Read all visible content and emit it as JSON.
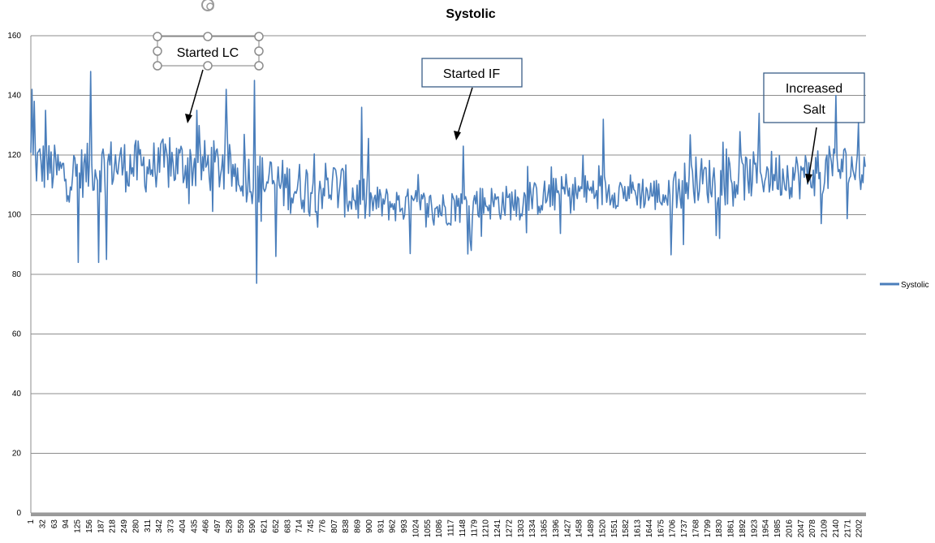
{
  "chart_data": {
    "type": "line",
    "title": "Systolic",
    "xlabel": "",
    "ylabel": "",
    "ylim": [
      0,
      160
    ],
    "yticks": [
      0,
      20,
      40,
      60,
      80,
      100,
      120,
      140,
      160
    ],
    "x_start": 1,
    "x_end": 2220,
    "xticks": [
      "1",
      "32",
      "63",
      "94",
      "125",
      "156",
      "187",
      "218",
      "249",
      "280",
      "311",
      "342",
      "373",
      "404",
      "435",
      "466",
      "497",
      "528",
      "559",
      "590",
      "621",
      "652",
      "683",
      "714",
      "745",
      "776",
      "807",
      "838",
      "869",
      "900",
      "931",
      "962",
      "993",
      "1024",
      "1055",
      "1086",
      "1117",
      "1148",
      "1179",
      "1210",
      "1241",
      "1272",
      "1303",
      "1334",
      "1365",
      "1396",
      "1427",
      "1458",
      "1489",
      "1520",
      "1551",
      "1582",
      "1613",
      "1644",
      "1675",
      "1706",
      "1737",
      "1768",
      "1799",
      "1830",
      "1861",
      "1892",
      "1923",
      "1954",
      "1985",
      "2016",
      "2047",
      "2078",
      "2109",
      "2140",
      "2171",
      "2202"
    ],
    "grid": true,
    "legend_position": "right",
    "series": [
      {
        "name": "Systolic",
        "color": "#4a7ebb",
        "baseline": [
          [
            1,
            118
          ],
          [
            100,
            113
          ],
          [
            200,
            117
          ],
          [
            300,
            116
          ],
          [
            400,
            117
          ],
          [
            500,
            116
          ],
          [
            600,
            112
          ],
          [
            700,
            109
          ],
          [
            800,
            110
          ],
          [
            900,
            104
          ],
          [
            1000,
            103
          ],
          [
            1100,
            102
          ],
          [
            1200,
            104
          ],
          [
            1300,
            104
          ],
          [
            1400,
            107
          ],
          [
            1500,
            108
          ],
          [
            1600,
            108
          ],
          [
            1700,
            106
          ],
          [
            1750,
            112
          ],
          [
            1850,
            111
          ],
          [
            1950,
            114
          ],
          [
            2050,
            113
          ],
          [
            2150,
            116
          ],
          [
            2220,
            115
          ]
        ],
        "spikes": [
          [
            3,
            142
          ],
          [
            10,
            138
          ],
          [
            40,
            135
          ],
          [
            125,
            84
          ],
          [
            160,
            148
          ],
          [
            180,
            84
          ],
          [
            200,
            85
          ],
          [
            440,
            135
          ],
          [
            520,
            142
          ],
          [
            595,
            145
          ],
          [
            600,
            77
          ],
          [
            650,
            86
          ],
          [
            880,
            136
          ],
          [
            1150,
            123
          ],
          [
            1170,
            88
          ],
          [
            1520,
            132
          ],
          [
            1735,
            90
          ],
          [
            1935,
            134
          ],
          [
            2140,
            140
          ],
          [
            2100,
            97
          ]
        ]
      }
    ],
    "annotations": [
      {
        "text": "Started LC",
        "target": [
          430,
          130
        ]
      },
      {
        "text": "Started IF",
        "target": [
          1140,
          124
        ]
      },
      {
        "lines": [
          "Increased",
          "Salt"
        ],
        "target": [
          2080,
          109
        ]
      }
    ]
  }
}
